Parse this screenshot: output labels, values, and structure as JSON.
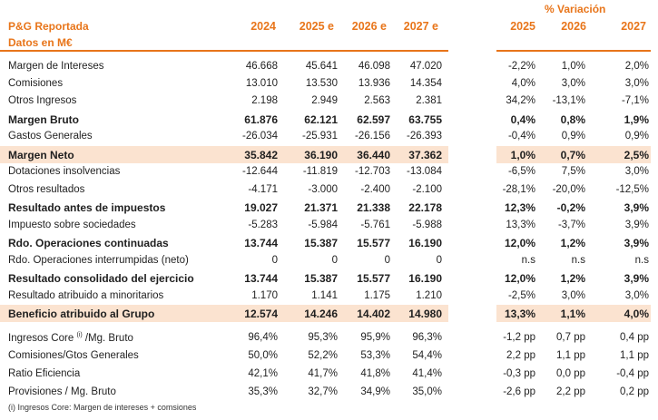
{
  "header": {
    "title_line1": "P&G Reportada",
    "title_line2": "Datos en M€",
    "years": [
      "2024",
      "2025 e",
      "2026 e",
      "2027 e"
    ],
    "variation_title": "% Variación",
    "variation_years": [
      "2025",
      "2026",
      "2027"
    ]
  },
  "rows": [
    {
      "label": "Margen de Intereses",
      "values": [
        "46.668",
        "45.641",
        "46.098",
        "47.020"
      ],
      "var": [
        "-2,2%",
        "1,0%",
        "2,0%"
      ]
    },
    {
      "label": "Comisiones",
      "values": [
        "13.010",
        "13.530",
        "13.936",
        "14.354"
      ],
      "var": [
        "4,0%",
        "3,0%",
        "3,0%"
      ]
    },
    {
      "label": "Otros Ingresos",
      "values": [
        "2.198",
        "2.949",
        "2.563",
        "2.381"
      ],
      "var": [
        "34,2%",
        "-13,1%",
        "-7,1%"
      ]
    },
    {
      "label": "Margen Bruto",
      "values": [
        "61.876",
        "62.121",
        "62.597",
        "63.755"
      ],
      "var": [
        "0,4%",
        "0,8%",
        "1,9%"
      ]
    },
    {
      "label": "Gastos Generales",
      "values": [
        "-26.034",
        "-25.931",
        "-26.156",
        "-26.393"
      ],
      "var": [
        "-0,4%",
        "0,9%",
        "0,9%"
      ]
    },
    {
      "label": "Margen Neto",
      "values": [
        "35.842",
        "36.190",
        "36.440",
        "37.362"
      ],
      "var": [
        "1,0%",
        "0,7%",
        "2,5%"
      ]
    },
    {
      "label": "Dotaciones insolvencias",
      "values": [
        "-12.644",
        "-11.819",
        "-12.703",
        "-13.084"
      ],
      "var": [
        "-6,5%",
        "7,5%",
        "3,0%"
      ]
    },
    {
      "label": "Otros resultados",
      "values": [
        "-4.171",
        "-3.000",
        "-2.400",
        "-2.100"
      ],
      "var": [
        "-28,1%",
        "-20,0%",
        "-12,5%"
      ]
    },
    {
      "label": "Resultado antes de impuestos",
      "values": [
        "19.027",
        "21.371",
        "21.338",
        "22.178"
      ],
      "var": [
        "12,3%",
        "-0,2%",
        "3,9%"
      ]
    },
    {
      "label": "Impuesto sobre sociedades",
      "values": [
        "-5.283",
        "-5.984",
        "-5.761",
        "-5.988"
      ],
      "var": [
        "13,3%",
        "-3,7%",
        "3,9%"
      ]
    },
    {
      "label": "Rdo. Operaciones continuadas",
      "values": [
        "13.744",
        "15.387",
        "15.577",
        "16.190"
      ],
      "var": [
        "12,0%",
        "1,2%",
        "3,9%"
      ]
    },
    {
      "label": "Rdo. Operaciones interrumpidas (neto)",
      "values": [
        "0",
        "0",
        "0",
        "0"
      ],
      "var": [
        "n.s",
        "n.s",
        "n.s"
      ]
    },
    {
      "label": "Resultado consolidado del ejercicio",
      "values": [
        "13.744",
        "15.387",
        "15.577",
        "16.190"
      ],
      "var": [
        "12,0%",
        "1,2%",
        "3,9%"
      ]
    },
    {
      "label": "Resultado atribuido a minoritarios",
      "values": [
        "1.170",
        "1.141",
        "1.175",
        "1.210"
      ],
      "var": [
        "-2,5%",
        "3,0%",
        "3,0%"
      ]
    },
    {
      "label": "Beneficio atribuido al Grupo",
      "values": [
        "12.574",
        "14.246",
        "14.402",
        "14.980"
      ],
      "var": [
        "13,3%",
        "1,1%",
        "4,0%"
      ]
    }
  ],
  "ratios": [
    {
      "label": "Ingresos Core",
      "label_sup": "(i)",
      "label_suffix": "/Mg. Bruto",
      "values": [
        "96,4%",
        "95,3%",
        "95,9%",
        "96,3%"
      ],
      "var": [
        "-1,2 pp",
        "0,7 pp",
        "0,4 pp"
      ]
    },
    {
      "label": "Comisiones/Gtos Generales",
      "values": [
        "50,0%",
        "52,2%",
        "53,3%",
        "54,4%"
      ],
      "var": [
        "2,2 pp",
        "1,1 pp",
        "1,1 pp"
      ]
    },
    {
      "label": "Ratio Eficiencia",
      "values": [
        "42,1%",
        "41,7%",
        "41,8%",
        "41,4%"
      ],
      "var": [
        "-0,3 pp",
        "0,0 pp",
        "-0,4 pp"
      ]
    },
    {
      "label": "Provisiones / Mg. Bruto",
      "values": [
        "35,3%",
        "32,7%",
        "34,9%",
        "35,0%"
      ],
      "var": [
        "-2,6 pp",
        "2,2 pp",
        "0,2 pp"
      ]
    }
  ],
  "footnote": "(i) Ingresos Core: Margen de intereses + comsiones",
  "colors": {
    "accent": "#e8751a",
    "highlight": "#fbe3d0"
  }
}
